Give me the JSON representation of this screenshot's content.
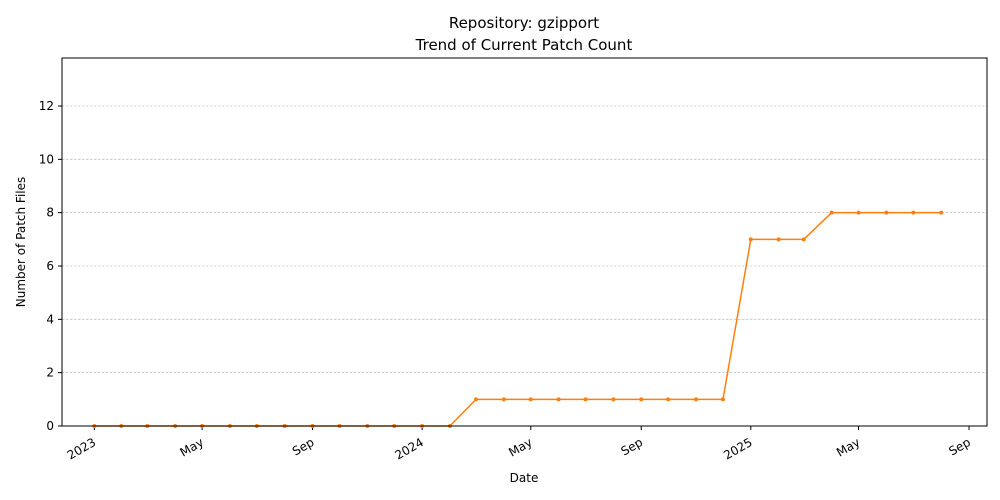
{
  "chart_data": {
    "type": "line",
    "title": "Repository: gzipport",
    "subtitle": "Trend of Current Patch Count",
    "xlabel": "Date",
    "ylabel": "Number of Patch Files",
    "xlim": [
      "2022-11-26",
      "2025-09-21"
    ],
    "ylim": [
      0,
      13.8
    ],
    "grid": "y",
    "y_ticks": [
      0,
      2,
      4,
      6,
      8,
      10,
      12
    ],
    "x_ticks": [
      {
        "date": "2023-01-01",
        "label": "2023"
      },
      {
        "date": "2023-05-01",
        "label": "May"
      },
      {
        "date": "2023-09-01",
        "label": "Sep"
      },
      {
        "date": "2024-01-01",
        "label": "2024"
      },
      {
        "date": "2024-05-01",
        "label": "May"
      },
      {
        "date": "2024-09-01",
        "label": "Sep"
      },
      {
        "date": "2025-01-01",
        "label": "2025"
      },
      {
        "date": "2025-05-01",
        "label": "May"
      },
      {
        "date": "2025-09-01",
        "label": "Sep"
      }
    ],
    "series": [
      {
        "color": "#ff7f0e",
        "points": [
          {
            "x": "2023-01-01",
            "y": 0
          },
          {
            "x": "2023-01-31",
            "y": 0
          },
          {
            "x": "2023-03-01",
            "y": 0
          },
          {
            "x": "2023-04-01",
            "y": 0
          },
          {
            "x": "2023-05-01",
            "y": 0
          },
          {
            "x": "2023-06-01",
            "y": 0
          },
          {
            "x": "2023-07-01",
            "y": 0
          },
          {
            "x": "2023-08-01",
            "y": 0
          },
          {
            "x": "2023-09-01",
            "y": 0
          },
          {
            "x": "2023-10-01",
            "y": 0
          },
          {
            "x": "2023-11-01",
            "y": 0
          },
          {
            "x": "2023-12-01",
            "y": 0
          },
          {
            "x": "2024-01-01",
            "y": 0
          },
          {
            "x": "2024-02-01",
            "y": 0
          },
          {
            "x": "2024-03-01",
            "y": 1
          },
          {
            "x": "2024-04-01",
            "y": 1
          },
          {
            "x": "2024-05-01",
            "y": 1
          },
          {
            "x": "2024-06-01",
            "y": 1
          },
          {
            "x": "2024-07-01",
            "y": 1
          },
          {
            "x": "2024-08-01",
            "y": 1
          },
          {
            "x": "2024-09-01",
            "y": 1
          },
          {
            "x": "2024-10-01",
            "y": 1
          },
          {
            "x": "2024-11-01",
            "y": 1
          },
          {
            "x": "2024-12-01",
            "y": 1
          },
          {
            "x": "2025-01-01",
            "y": 7
          },
          {
            "x": "2025-02-01",
            "y": 7
          },
          {
            "x": "2025-03-01",
            "y": 7
          },
          {
            "x": "2025-04-01",
            "y": 8
          },
          {
            "x": "2025-05-01",
            "y": 8
          },
          {
            "x": "2025-06-01",
            "y": 8
          },
          {
            "x": "2025-07-01",
            "y": 8
          },
          {
            "x": "2025-08-01",
            "y": 8
          }
        ]
      }
    ]
  }
}
